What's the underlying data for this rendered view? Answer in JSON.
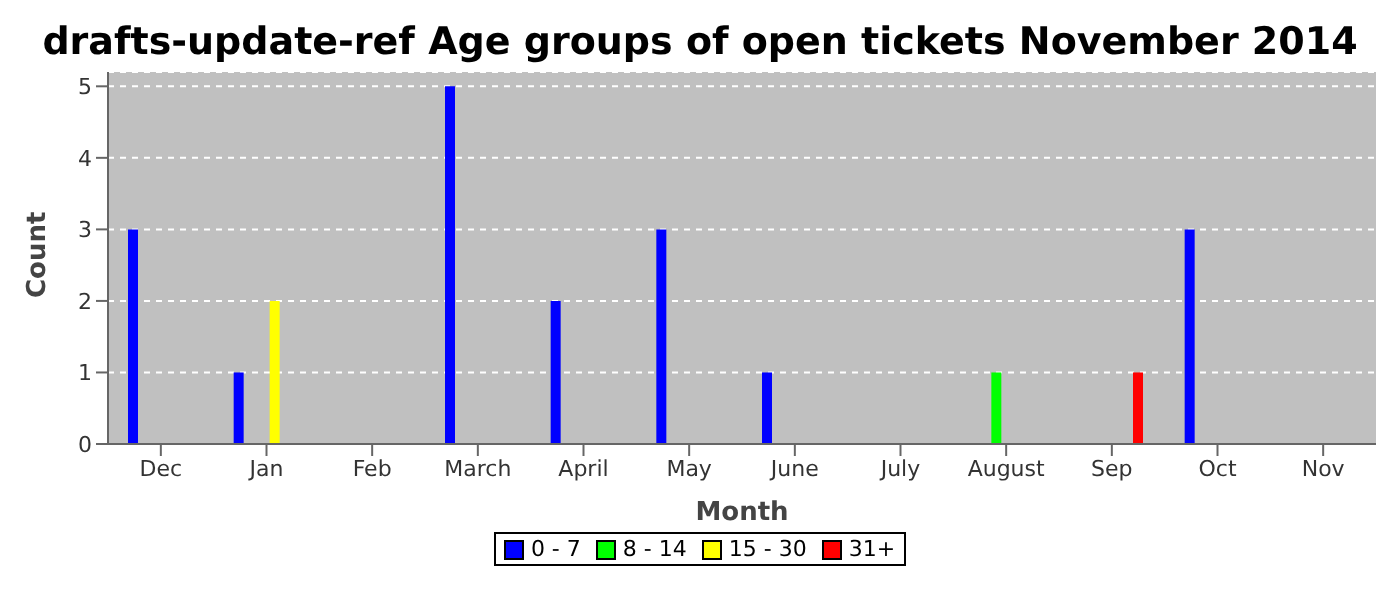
{
  "chart_data": {
    "type": "bar",
    "title": "drafts-update-ref Age groups of open tickets November 2014",
    "xlabel": "Month",
    "ylabel": "Count",
    "categories": [
      "Dec",
      "Jan",
      "Feb",
      "March",
      "April",
      "May",
      "June",
      "July",
      "August",
      "Sep",
      "Oct",
      "Nov"
    ],
    "series": [
      {
        "name": "0 - 7",
        "color": "#0000ff",
        "values": [
          3,
          1,
          0,
          5,
          2,
          3,
          1,
          0,
          0,
          0,
          3,
          0
        ]
      },
      {
        "name": "8 - 14",
        "color": "#00ff00",
        "values": [
          0,
          0,
          0,
          0,
          0,
          0,
          0,
          0,
          1,
          0,
          0,
          0
        ]
      },
      {
        "name": "15 - 30",
        "color": "#ffff00",
        "values": [
          0,
          2,
          0,
          0,
          0,
          0,
          0,
          0,
          0,
          0,
          0,
          0
        ]
      },
      {
        "name": "31+",
        "color": "#ff0000",
        "values": [
          0,
          0,
          0,
          0,
          0,
          0,
          0,
          0,
          0,
          1,
          0,
          0
        ]
      }
    ],
    "ylim": [
      0,
      5.2
    ],
    "yticks": [
      0,
      1,
      2,
      3,
      4,
      5
    ],
    "grid": "y",
    "legend": "bottom"
  }
}
